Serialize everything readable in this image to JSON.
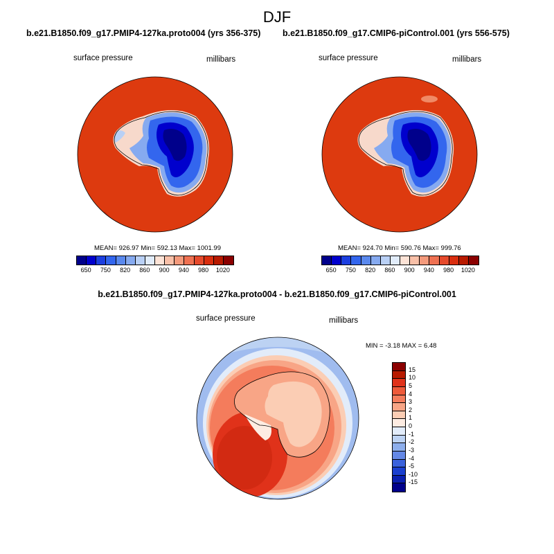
{
  "page": {
    "main_title": "DJF",
    "panel_left_title": "b.e21.B1850.f09_g17.PMIP4-127ka.proto004 (yrs 356-375)",
    "panel_right_title": "b.e21.B1850.f09_g17.CMIP6-piControl.001 (yrs 556-575)",
    "diff_title": "b.e21.B1850.f09_g17.PMIP4-127ka.proto004 - b.e21.B1850.f09_g17.CMIP6-piControl.001"
  },
  "chart_data": [
    {
      "type": "heatmap",
      "subtype": "polar-stereographic-contour",
      "region": "Antarctica (south polar)",
      "variable": "surface pressure",
      "units": "millibars",
      "case": "b.e21.B1850.f09_g17.PMIP4-127ka.proto004",
      "years": "356-375",
      "stats": {
        "text": "MEAN= 926.97  Min= 592.13  Max= 1001.99",
        "mean": 926.97,
        "min": 592.13,
        "max": 1001.99
      },
      "colorbar": {
        "levels": [
          "650",
          "750",
          "820",
          "860",
          "900",
          "940",
          "980",
          "1020"
        ],
        "colors": [
          "#00008b",
          "#0000cd",
          "#1c3fe0",
          "#3366ee",
          "#5a89ee",
          "#86aaf0",
          "#b9d0f5",
          "#e1ecfa",
          "#fde3d6",
          "#f9c0a8",
          "#f49a7c",
          "#ef7152",
          "#e64a2c",
          "#d92e0f",
          "#b81a00",
          "#8b0000"
        ]
      }
    },
    {
      "type": "heatmap",
      "subtype": "polar-stereographic-contour",
      "region": "Antarctica (south polar)",
      "variable": "surface pressure",
      "units": "millibars",
      "case": "b.e21.B1850.f09_g17.CMIP6-piControl.001",
      "years": "556-575",
      "stats": {
        "text": "MEAN= 924.70  Min= 590.76  Max= 999.76",
        "mean": 924.7,
        "min": 590.76,
        "max": 999.76
      },
      "colorbar": {
        "levels": [
          "650",
          "750",
          "820",
          "860",
          "900",
          "940",
          "980",
          "1020"
        ],
        "colors": [
          "#00008b",
          "#0000cd",
          "#1c3fe0",
          "#3366ee",
          "#5a89ee",
          "#86aaf0",
          "#b9d0f5",
          "#e1ecfa",
          "#fde3d6",
          "#f9c0a8",
          "#f49a7c",
          "#ef7152",
          "#e64a2c",
          "#d92e0f",
          "#b81a00",
          "#8b0000"
        ]
      }
    },
    {
      "type": "heatmap",
      "subtype": "polar-stereographic-contour-difference",
      "region": "Antarctica (south polar)",
      "variable": "surface pressure",
      "units": "millibars",
      "stats": {
        "text": "MIN =  -3.18 MAX =   6.48",
        "min": -3.18,
        "max": 6.48
      },
      "colorbar": {
        "levels": [
          "15",
          "10",
          "5",
          "4",
          "3",
          "2",
          "1",
          "0",
          "-1",
          "-2",
          "-3",
          "-4",
          "-5",
          "-10",
          "-15"
        ],
        "colors": [
          "#8b0000",
          "#b81a00",
          "#e0321a",
          "#ee5a3a",
          "#f47c5c",
          "#f8a586",
          "#fbcdb4",
          "#fdece2",
          "#e2ecfa",
          "#bcd2f3",
          "#8daeec",
          "#6488e6",
          "#3a62dc",
          "#1a3fcf",
          "#0a1fb0",
          "#00008b"
        ]
      }
    }
  ]
}
